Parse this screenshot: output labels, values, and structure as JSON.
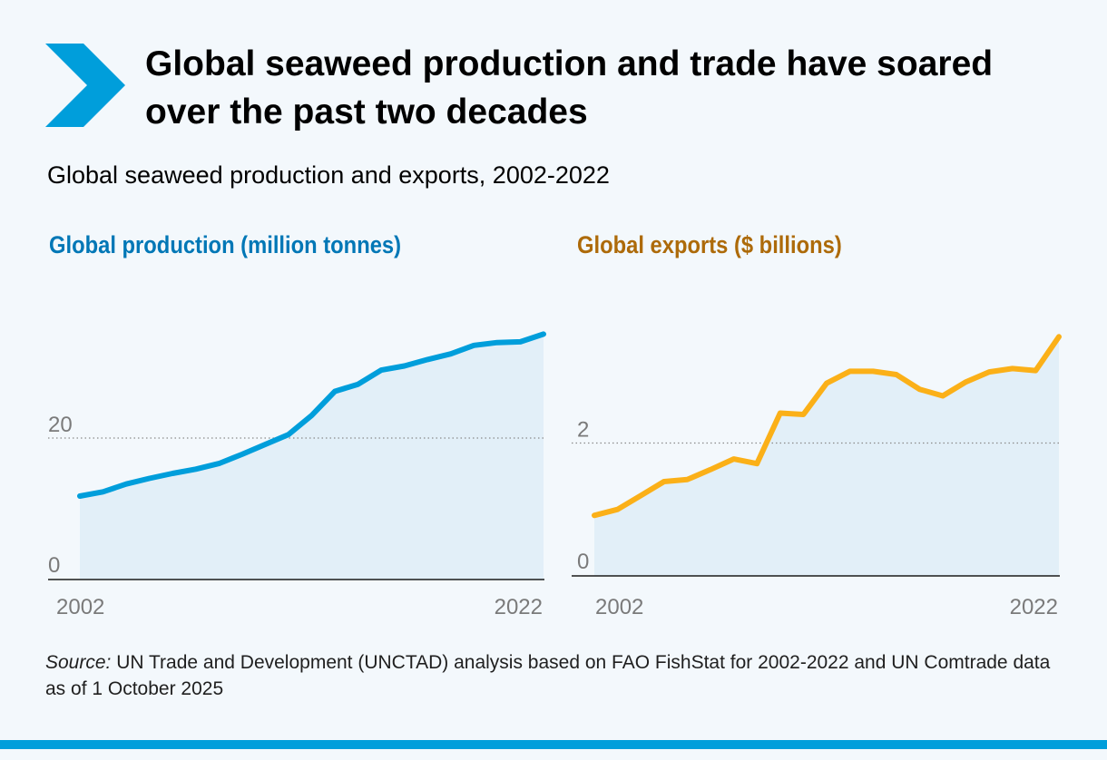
{
  "header": {
    "title": "Global seaweed production and trade have soared over the past two decades",
    "subtitle": "Global seaweed production and exports, 2002-2022"
  },
  "colors": {
    "brand": "#009edb",
    "production_line": "#009edb",
    "production_title": "#0077b6",
    "exports_line": "#fbb018",
    "exports_title": "#ad6a09",
    "area_fill": "#e2eff8",
    "background": "#f3f8fc"
  },
  "icons": {
    "logo": "chevron-right-icon"
  },
  "chart_data": [
    {
      "type": "area",
      "title": "Global production (million tonnes)",
      "x": [
        2002,
        2003,
        2004,
        2005,
        2006,
        2007,
        2008,
        2009,
        2010,
        2011,
        2012,
        2013,
        2014,
        2015,
        2016,
        2017,
        2018,
        2019,
        2020,
        2021,
        2022
      ],
      "series": [
        {
          "values": [
            11.8,
            12.4,
            13.5,
            14.3,
            15.0,
            15.6,
            16.4,
            17.7,
            19.1,
            20.5,
            23.2,
            26.6,
            27.6,
            29.6,
            30.2,
            31.1,
            31.9,
            33.1,
            33.5,
            33.6,
            34.7
          ]
        }
      ],
      "yticks": [
        0,
        20
      ],
      "ylim": [
        0,
        40.9
      ],
      "x_tick_labels": [
        "2002",
        "2022"
      ],
      "grid": "dotted line at 20"
    },
    {
      "type": "area",
      "title": "Global exports ($ billions)",
      "x": [
        2002,
        2003,
        2004,
        2005,
        2006,
        2007,
        2008,
        2009,
        2010,
        2011,
        2012,
        2013,
        2014,
        2015,
        2016,
        2017,
        2018,
        2019,
        2020,
        2021,
        2022
      ],
      "series": [
        {
          "values": [
            0.91,
            1.0,
            1.21,
            1.42,
            1.45,
            1.6,
            1.76,
            1.69,
            2.45,
            2.43,
            2.9,
            3.08,
            3.08,
            3.03,
            2.81,
            2.71,
            2.92,
            3.07,
            3.12,
            3.09,
            3.6
          ]
        }
      ],
      "yticks": [
        0,
        2
      ],
      "ylim": [
        0,
        4.3
      ],
      "x_tick_labels": [
        "2002",
        "2022"
      ],
      "grid": "dotted line at 2"
    }
  ],
  "source": {
    "label": "Source:",
    "text": " UN Trade and Development (UNCTAD) analysis based on FAO FishStat for 2002-2022 and UN Comtrade data as of 1 October 2025"
  }
}
